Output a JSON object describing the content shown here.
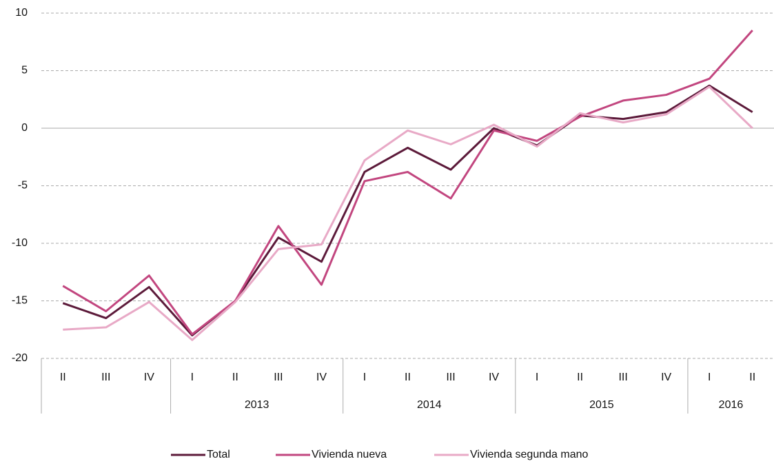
{
  "chart_data": {
    "type": "line",
    "categories": [
      "II",
      "III",
      "IV",
      "I",
      "II",
      "III",
      "IV",
      "I",
      "II",
      "III",
      "IV",
      "I",
      "II",
      "III",
      "IV",
      "I",
      "II"
    ],
    "category_groups": [
      null,
      null,
      null,
      "2013",
      "2013",
      "2013",
      "2013",
      "2014",
      "2014",
      "2014",
      "2014",
      "2015",
      "2015",
      "2015",
      "2015",
      "2016",
      "2016"
    ],
    "series": [
      {
        "name": "Total",
        "color": "#5c1a3a",
        "values": [
          -15.2,
          -16.5,
          -13.8,
          -18.0,
          -15.0,
          -9.5,
          -11.6,
          -3.8,
          -1.7,
          -3.6,
          0.0,
          -1.5,
          1.1,
          0.8,
          1.4,
          3.7,
          1.4
        ]
      },
      {
        "name": "Vivienda nueva",
        "color": "#c2467f",
        "values": [
          -13.7,
          -15.9,
          -12.8,
          -17.9,
          -15.0,
          -8.5,
          -13.6,
          -4.6,
          -3.8,
          -6.1,
          -0.2,
          -1.1,
          1.0,
          2.4,
          2.9,
          4.3,
          8.5
        ]
      },
      {
        "name": "Vivienda segunda mano",
        "color": "#e8a9c6",
        "values": [
          -17.5,
          -17.3,
          -15.1,
          -18.4,
          -15.1,
          -10.5,
          -10.1,
          -2.8,
          -0.2,
          -1.4,
          0.3,
          -1.6,
          1.3,
          0.5,
          1.2,
          3.6,
          0.0
        ]
      }
    ],
    "ylim": [
      -20,
      10
    ],
    "yticks": [
      -20,
      -15,
      -10,
      -5,
      0,
      5,
      10
    ],
    "grid": true,
    "legend": "bottom"
  }
}
